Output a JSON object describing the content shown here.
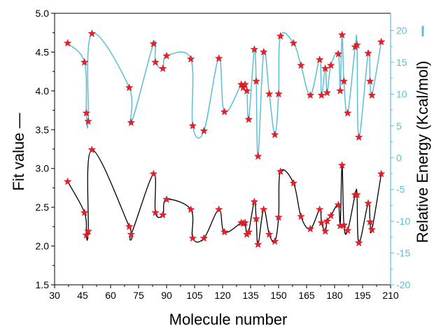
{
  "chart_data": {
    "type": "line",
    "xlabel": "Molecule number",
    "ylabel_left": "Fit value —",
    "ylabel_right": "Relative Energy (Kcal/mol)",
    "xlim": [
      30,
      210
    ],
    "ylim_left": [
      1.5,
      5.0
    ],
    "ylim_right": [
      -20,
      22.7
    ],
    "x_ticks": [
      30,
      45,
      60,
      75,
      90,
      105,
      120,
      135,
      150,
      165,
      180,
      195,
      210
    ],
    "y_left_ticks": [
      1.5,
      2.0,
      2.5,
      3.0,
      3.5,
      4.0,
      4.5,
      5.0
    ],
    "y_right_ticks": [
      -20,
      -15,
      -10,
      -5,
      0,
      5,
      10,
      15,
      20
    ],
    "colors": {
      "fit_series": "#000000",
      "energy_series": "#5bbfd6",
      "marker": "#e8202a",
      "right_axis": "#5bbfd6",
      "left_axis": "#000000"
    },
    "marker_shape": "star",
    "grid": false,
    "series": [
      {
        "axis": "left",
        "x": [
          37,
          46,
          47,
          48,
          50,
          70,
          71,
          83,
          84,
          88,
          90,
          103,
          104,
          110,
          118,
          121,
          130,
          131,
          132,
          133,
          134,
          137,
          138,
          139,
          142,
          145,
          148,
          150,
          151,
          158,
          162,
          167,
          172,
          173,
          175,
          176,
          178,
          182,
          183,
          184,
          185,
          187,
          191,
          192,
          193,
          198,
          199,
          200,
          205
        ],
        "values": [
          2.83,
          2.43,
          2.14,
          2.19,
          3.24,
          2.25,
          2.15,
          2.93,
          2.43,
          2.4,
          2.6,
          2.47,
          2.1,
          2.1,
          2.47,
          2.18,
          2.3,
          2.29,
          2.3,
          2.15,
          2.18,
          2.57,
          2.35,
          2.02,
          2.47,
          2.15,
          2.06,
          2.37,
          2.96,
          2.81,
          2.38,
          2.22,
          2.47,
          2.3,
          2.19,
          2.32,
          2.39,
          2.53,
          2.26,
          3.04,
          2.27,
          2.2,
          2.66,
          2.66,
          2.04,
          2.55,
          2.31,
          2.21,
          2.93
        ]
      },
      {
        "axis": "right",
        "x": [
          37,
          46,
          47,
          48,
          50,
          70,
          71,
          83,
          84,
          88,
          90,
          103,
          104,
          110,
          118,
          121,
          130,
          131,
          132,
          133,
          134,
          137,
          138,
          139,
          142,
          145,
          148,
          150,
          151,
          158,
          162,
          167,
          172,
          173,
          175,
          176,
          178,
          182,
          183,
          184,
          185,
          187,
          191,
          192,
          193,
          198,
          199,
          200,
          205
        ],
        "values": [
          18.0,
          15.0,
          7.0,
          5.7,
          19.5,
          11.0,
          5.5,
          17.9,
          15.0,
          14.0,
          16.0,
          15.5,
          5.0,
          4.2,
          15.6,
          7.2,
          11.5,
          11.0,
          11.5,
          10.5,
          6.0,
          17.0,
          12.0,
          0.2,
          16.6,
          10.0,
          3.6,
          10.0,
          19.1,
          18.0,
          14.5,
          9.8,
          15.4,
          9.8,
          14.0,
          10.2,
          14.5,
          16.3,
          10.5,
          19.3,
          12.0,
          7.0,
          17.4,
          17.7,
          3.2,
          16.4,
          12.0,
          9.8,
          18.2
        ]
      }
    ]
  }
}
